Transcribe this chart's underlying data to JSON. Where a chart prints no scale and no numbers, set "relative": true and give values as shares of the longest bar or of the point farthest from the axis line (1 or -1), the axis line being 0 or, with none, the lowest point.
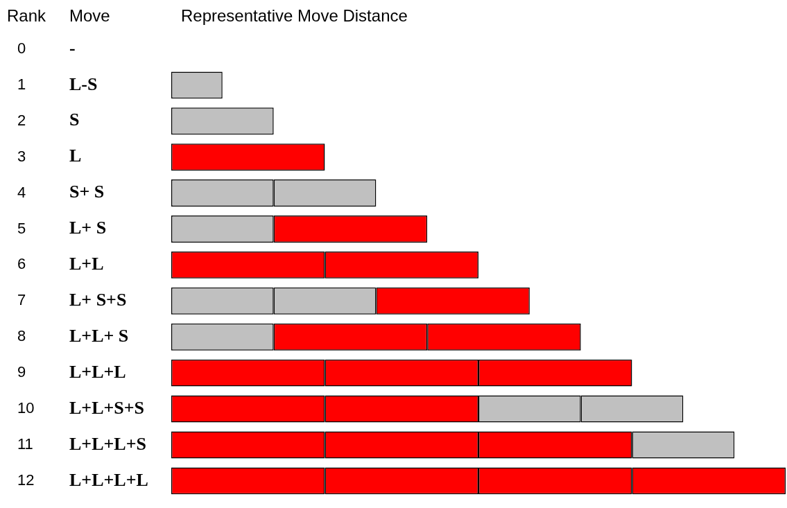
{
  "chart_data": {
    "type": "bar",
    "orientation": "horizontal",
    "stacked": true,
    "relative": true,
    "legend": false,
    "tick_labels": "y",
    "xlabel": "Representative Move Distance",
    "categories": [
      "0",
      "1",
      "2",
      "3",
      "4",
      "5",
      "6",
      "7",
      "8",
      "9",
      "10",
      "11",
      "12"
    ],
    "series": [
      {
        "colors": [
          null,
          "#c0c0c0",
          "#c0c0c0",
          "#ff0000",
          "#c0c0c0",
          "#c0c0c0",
          "#ff0000",
          "#c0c0c0",
          "#c0c0c0",
          "#ff0000",
          "#ff0000",
          "#ff0000",
          "#ff0000"
        ],
        "values": [
          null,
          0.0833,
          0.1667,
          0.25,
          0.1667,
          0.1667,
          0.25,
          0.1667,
          0.1667,
          0.25,
          0.25,
          0.25,
          0.25
        ]
      },
      {
        "colors": [
          null,
          null,
          null,
          null,
          "#c0c0c0",
          "#ff0000",
          "#ff0000",
          "#c0c0c0",
          "#ff0000",
          "#ff0000",
          "#ff0000",
          "#ff0000",
          "#ff0000"
        ],
        "values": [
          null,
          null,
          null,
          null,
          0.1667,
          0.25,
          0.25,
          0.1667,
          0.25,
          0.25,
          0.25,
          0.25,
          0.25
        ]
      },
      {
        "colors": [
          null,
          null,
          null,
          null,
          null,
          null,
          null,
          "#ff0000",
          "#ff0000",
          "#ff0000",
          "#c0c0c0",
          "#ff0000",
          "#ff0000"
        ],
        "values": [
          null,
          null,
          null,
          null,
          null,
          null,
          null,
          0.25,
          0.25,
          0.25,
          0.1667,
          0.25,
          0.25
        ]
      },
      {
        "colors": [
          null,
          null,
          null,
          null,
          null,
          null,
          null,
          null,
          null,
          null,
          "#c0c0c0",
          "#c0c0c0",
          "#ff0000"
        ],
        "values": [
          null,
          null,
          null,
          null,
          null,
          null,
          null,
          null,
          null,
          null,
          0.1667,
          0.1667,
          0.25
        ]
      }
    ],
    "annotations": [
      "Rank",
      "Move",
      "-",
      "L-S",
      "S",
      "L",
      "S+ S",
      "L+ S",
      "L+L",
      "L+ S+S",
      "L+L+ S",
      "L+L+L",
      "L+L+S+S",
      "L+L+L+S",
      "L+L+L+L"
    ]
  }
}
